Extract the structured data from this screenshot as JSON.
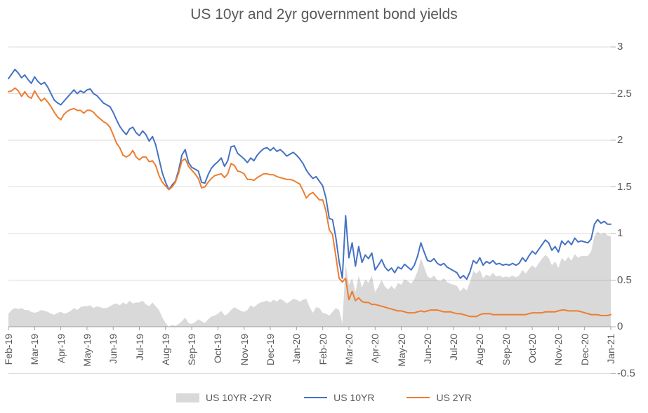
{
  "title": "US 10yr and 2yr government bond yields",
  "colors": {
    "spread_area": "#D9D9D9",
    "us10yr_line": "#4472C4",
    "us2yr_line": "#ED7D31",
    "text": "#595959"
  },
  "legend": {
    "items": [
      {
        "label": "US 10YR -2YR",
        "swatch": "area-swatch",
        "color": "#D9D9D9"
      },
      {
        "label": "US 10YR",
        "swatch": "line-swatch",
        "color": "#4472C4"
      },
      {
        "label": "US 2YR",
        "swatch": "line-swatch",
        "color": "#ED7D31"
      }
    ]
  },
  "chart_data": {
    "type": "line",
    "title": "US 10yr and 2yr government bond yields",
    "xlabel": "",
    "ylabel": "",
    "ylim": [
      -0.5,
      3
    ],
    "grid": true,
    "legend_position": "bottom",
    "y_axis_side": "right",
    "y_ticks": [
      3,
      2.5,
      2,
      1.5,
      1,
      0.5,
      0,
      -0.5
    ],
    "y_tick_labels": [
      "3",
      "2.5",
      "2",
      "1.5",
      "1",
      "0.5",
      "0",
      "-0.5"
    ],
    "x_tick_labels": [
      "Feb-19",
      "Mar-19",
      "Apr-19",
      "May-19",
      "Jun-19",
      "Jul-19",
      "Aug-19",
      "Sep-19",
      "Oct-19",
      "Nov-19",
      "Dec-19",
      "Jan-20",
      "Feb-20",
      "Mar-20",
      "Apr-20",
      "May-20",
      "Jun-20",
      "Jul-20",
      "Aug-20",
      "Sep-20",
      "Oct-20",
      "Nov-20",
      "Dec-20",
      "Jan-21"
    ],
    "x_unit": "months since Feb-2019",
    "x_start": 0,
    "x_step": 0.125,
    "series": [
      {
        "name": "US 10YR -2YR",
        "type": "area",
        "color": "#D9D9D9",
        "values": [
          0.14,
          0.18,
          0.2,
          0.19,
          0.2,
          0.18,
          0.18,
          0.16,
          0.15,
          0.16,
          0.18,
          0.17,
          0.16,
          0.14,
          0.13,
          0.15,
          0.16,
          0.14,
          0.15,
          0.17,
          0.2,
          0.18,
          0.21,
          0.22,
          0.22,
          0.23,
          0.2,
          0.22,
          0.21,
          0.2,
          0.2,
          0.22,
          0.24,
          0.25,
          0.23,
          0.26,
          0.24,
          0.28,
          0.25,
          0.26,
          0.26,
          0.28,
          0.24,
          0.22,
          0.26,
          0.22,
          0.18,
          0.1,
          0.04,
          0.0,
          0.02,
          0.01,
          0.03,
          0.06,
          0.1,
          0.04,
          0.03,
          0.05,
          0.08,
          0.06,
          0.04,
          0.08,
          0.11,
          0.12,
          0.14,
          0.17,
          0.12,
          0.14,
          0.18,
          0.21,
          0.19,
          0.17,
          0.16,
          0.18,
          0.23,
          0.21,
          0.24,
          0.26,
          0.27,
          0.28,
          0.26,
          0.29,
          0.27,
          0.3,
          0.28,
          0.25,
          0.27,
          0.3,
          0.29,
          0.27,
          0.29,
          0.3,
          0.21,
          0.15,
          0.21,
          0.2,
          0.15,
          0.14,
          0.12,
          0.16,
          0.2,
          0.18,
          0.04,
          0.67,
          0.45,
          0.52,
          0.37,
          0.55,
          0.42,
          0.51,
          0.47,
          0.55,
          0.37,
          0.43,
          0.5,
          0.43,
          0.4,
          0.44,
          0.4,
          0.47,
          0.45,
          0.51,
          0.49,
          0.46,
          0.51,
          0.6,
          0.73,
          0.64,
          0.54,
          0.52,
          0.55,
          0.5,
          0.49,
          0.52,
          0.48,
          0.46,
          0.45,
          0.44,
          0.38,
          0.42,
          0.39,
          0.48,
          0.6,
          0.57,
          0.61,
          0.52,
          0.56,
          0.54,
          0.58,
          0.54,
          0.55,
          0.53,
          0.54,
          0.53,
          0.55,
          0.53,
          0.55,
          0.61,
          0.57,
          0.62,
          0.66,
          0.63,
          0.68,
          0.73,
          0.77,
          0.74,
          0.66,
          0.7,
          0.63,
          0.74,
          0.7,
          0.75,
          0.71,
          0.78,
          0.74,
          0.76,
          0.76,
          0.76,
          0.81,
          0.97,
          1.02,
          0.99,
          1.01,
          0.98,
          0.97
        ]
      },
      {
        "name": "US 10YR",
        "type": "line",
        "color": "#4472C4",
        "values": [
          2.66,
          2.71,
          2.76,
          2.72,
          2.67,
          2.7,
          2.65,
          2.61,
          2.68,
          2.63,
          2.6,
          2.62,
          2.57,
          2.5,
          2.43,
          2.4,
          2.38,
          2.42,
          2.46,
          2.5,
          2.54,
          2.5,
          2.53,
          2.51,
          2.54,
          2.55,
          2.5,
          2.48,
          2.44,
          2.4,
          2.38,
          2.36,
          2.3,
          2.22,
          2.15,
          2.1,
          2.06,
          2.12,
          2.14,
          2.08,
          2.05,
          2.1,
          2.06,
          1.99,
          2.04,
          1.95,
          1.8,
          1.65,
          1.55,
          1.47,
          1.52,
          1.56,
          1.68,
          1.84,
          1.9,
          1.76,
          1.71,
          1.69,
          1.67,
          1.55,
          1.54,
          1.63,
          1.7,
          1.74,
          1.77,
          1.81,
          1.72,
          1.78,
          1.93,
          1.94,
          1.86,
          1.83,
          1.8,
          1.76,
          1.81,
          1.78,
          1.84,
          1.88,
          1.91,
          1.92,
          1.89,
          1.92,
          1.88,
          1.9,
          1.87,
          1.83,
          1.85,
          1.87,
          1.84,
          1.8,
          1.75,
          1.68,
          1.63,
          1.59,
          1.61,
          1.56,
          1.51,
          1.38,
          1.16,
          1.15,
          0.96,
          0.7,
          0.52,
          1.19,
          0.74,
          0.9,
          0.65,
          0.86,
          0.69,
          0.77,
          0.73,
          0.79,
          0.61,
          0.66,
          0.72,
          0.64,
          0.6,
          0.63,
          0.58,
          0.64,
          0.62,
          0.67,
          0.64,
          0.61,
          0.66,
          0.76,
          0.9,
          0.8,
          0.71,
          0.7,
          0.73,
          0.68,
          0.66,
          0.68,
          0.64,
          0.62,
          0.6,
          0.58,
          0.52,
          0.55,
          0.51,
          0.59,
          0.71,
          0.68,
          0.74,
          0.66,
          0.7,
          0.68,
          0.71,
          0.67,
          0.68,
          0.66,
          0.67,
          0.66,
          0.68,
          0.66,
          0.68,
          0.74,
          0.7,
          0.76,
          0.81,
          0.78,
          0.83,
          0.88,
          0.93,
          0.9,
          0.82,
          0.86,
          0.8,
          0.92,
          0.88,
          0.92,
          0.88,
          0.95,
          0.91,
          0.92,
          0.91,
          0.9,
          0.94,
          1.1,
          1.15,
          1.11,
          1.13,
          1.1,
          1.1
        ]
      },
      {
        "name": "US 2YR",
        "type": "line",
        "color": "#ED7D31",
        "values": [
          2.52,
          2.53,
          2.56,
          2.53,
          2.47,
          2.52,
          2.47,
          2.45,
          2.53,
          2.47,
          2.42,
          2.45,
          2.41,
          2.36,
          2.3,
          2.25,
          2.22,
          2.28,
          2.31,
          2.33,
          2.34,
          2.32,
          2.32,
          2.29,
          2.32,
          2.32,
          2.3,
          2.26,
          2.23,
          2.2,
          2.18,
          2.14,
          2.06,
          1.97,
          1.92,
          1.84,
          1.82,
          1.84,
          1.89,
          1.82,
          1.79,
          1.82,
          1.82,
          1.77,
          1.78,
          1.73,
          1.62,
          1.55,
          1.51,
          1.47,
          1.5,
          1.55,
          1.65,
          1.78,
          1.8,
          1.72,
          1.68,
          1.64,
          1.59,
          1.49,
          1.5,
          1.55,
          1.59,
          1.62,
          1.63,
          1.64,
          1.6,
          1.64,
          1.75,
          1.73,
          1.67,
          1.66,
          1.64,
          1.58,
          1.58,
          1.57,
          1.6,
          1.62,
          1.64,
          1.64,
          1.63,
          1.63,
          1.61,
          1.6,
          1.59,
          1.58,
          1.58,
          1.57,
          1.55,
          1.53,
          1.46,
          1.38,
          1.42,
          1.44,
          1.4,
          1.36,
          1.36,
          1.24,
          1.04,
          0.99,
          0.76,
          0.52,
          0.48,
          0.52,
          0.29,
          0.38,
          0.28,
          0.31,
          0.27,
          0.26,
          0.26,
          0.24,
          0.24,
          0.23,
          0.22,
          0.21,
          0.2,
          0.19,
          0.18,
          0.17,
          0.17,
          0.16,
          0.15,
          0.15,
          0.15,
          0.16,
          0.17,
          0.16,
          0.17,
          0.18,
          0.18,
          0.18,
          0.17,
          0.16,
          0.16,
          0.16,
          0.15,
          0.14,
          0.14,
          0.13,
          0.12,
          0.11,
          0.11,
          0.11,
          0.13,
          0.14,
          0.14,
          0.14,
          0.13,
          0.13,
          0.13,
          0.13,
          0.13,
          0.13,
          0.13,
          0.13,
          0.13,
          0.13,
          0.13,
          0.14,
          0.15,
          0.15,
          0.15,
          0.15,
          0.16,
          0.16,
          0.16,
          0.16,
          0.17,
          0.18,
          0.18,
          0.17,
          0.17,
          0.17,
          0.17,
          0.16,
          0.15,
          0.14,
          0.13,
          0.13,
          0.13,
          0.12,
          0.12,
          0.12,
          0.13
        ]
      }
    ]
  }
}
